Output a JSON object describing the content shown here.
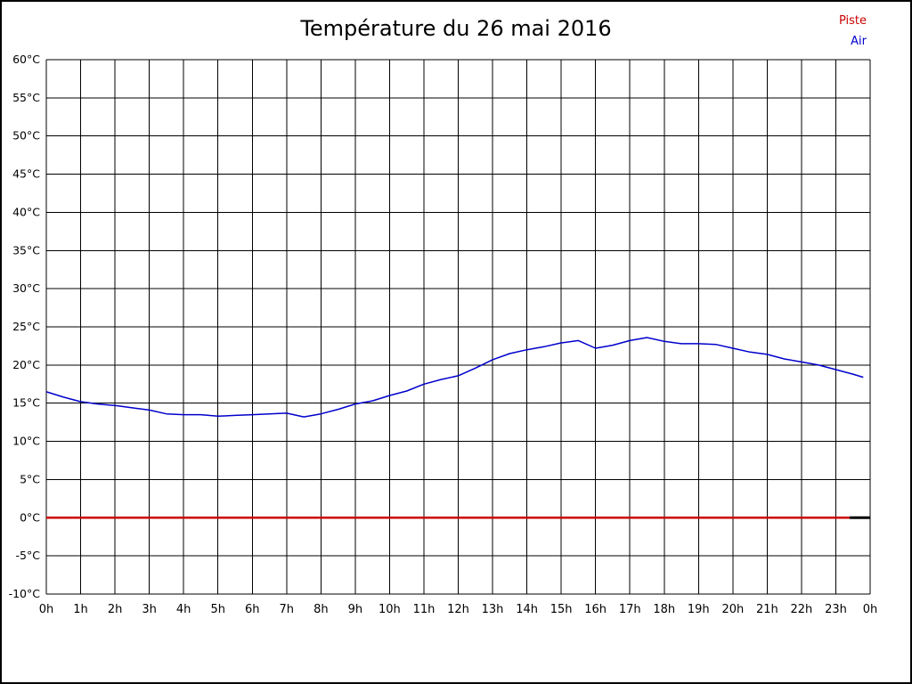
{
  "title": "Température du 26 mai 2016",
  "legend": {
    "items": [
      {
        "label": "Piste",
        "color": "#cc0000"
      },
      {
        "label": "Air",
        "color": "#0000cc"
      }
    ]
  },
  "chart_data": {
    "type": "line",
    "title": "Température du 26 mai 2016",
    "xlabel": "",
    "ylabel": "",
    "xlim": [
      0,
      24
    ],
    "ylim": [
      -10,
      60
    ],
    "ytick_step": 5,
    "grid": true,
    "grid_color": "#000000",
    "legend_position": "top-right",
    "ytick_labels": [
      "60°C",
      "55°C",
      "50°C",
      "45°C",
      "40°C",
      "35°C",
      "30°C",
      "25°C",
      "20°C",
      "15°C",
      "10°C",
      "5°C",
      "0°C",
      "-5°C",
      "-10°C"
    ],
    "xtick_labels": [
      "0h",
      "1h",
      "2h",
      "3h",
      "4h",
      "5h",
      "6h",
      "7h",
      "8h",
      "9h",
      "10h",
      "11h",
      "12h",
      "13h",
      "14h",
      "15h",
      "16h",
      "17h",
      "18h",
      "19h",
      "20h",
      "21h",
      "22h",
      "23h",
      "0h"
    ],
    "series": [
      {
        "name": "Air",
        "color": "#0000cc",
        "width": 1.5,
        "points": [
          [
            0,
            16.5
          ],
          [
            0.5,
            15.8
          ],
          [
            1,
            15.2
          ],
          [
            1.5,
            14.9
          ],
          [
            2,
            14.7
          ],
          [
            2.5,
            14.4
          ],
          [
            3,
            14.1
          ],
          [
            3.5,
            13.6
          ],
          [
            4,
            13.5
          ],
          [
            4.5,
            13.5
          ],
          [
            5,
            13.3
          ],
          [
            5.5,
            13.4
          ],
          [
            6,
            13.5
          ],
          [
            6.5,
            13.6
          ],
          [
            7,
            13.7
          ],
          [
            7.5,
            13.2
          ],
          [
            8,
            13.6
          ],
          [
            8.5,
            14.2
          ],
          [
            9,
            14.9
          ],
          [
            9.5,
            15.3
          ],
          [
            10,
            16.0
          ],
          [
            10.5,
            16.6
          ],
          [
            11,
            17.5
          ],
          [
            11.5,
            18.1
          ],
          [
            12,
            18.6
          ],
          [
            12.5,
            19.6
          ],
          [
            13,
            20.7
          ],
          [
            13.5,
            21.5
          ],
          [
            14,
            22.0
          ],
          [
            14.5,
            22.4
          ],
          [
            15,
            22.9
          ],
          [
            15.5,
            23.2
          ],
          [
            16,
            22.2
          ],
          [
            16.5,
            22.6
          ],
          [
            17,
            23.2
          ],
          [
            17.5,
            23.6
          ],
          [
            18,
            23.1
          ],
          [
            18.5,
            22.8
          ],
          [
            19,
            22.8
          ],
          [
            19.5,
            22.7
          ],
          [
            20,
            22.2
          ],
          [
            20.5,
            21.7
          ],
          [
            21,
            21.4
          ],
          [
            21.5,
            20.8
          ],
          [
            22,
            20.4
          ],
          [
            22.5,
            20.0
          ],
          [
            23,
            19.4
          ],
          [
            23.5,
            18.8
          ],
          [
            23.8,
            18.4
          ]
        ]
      },
      {
        "name": "Piste",
        "color": "#cc0000",
        "width": 2.5,
        "points": [
          [
            0,
            0
          ],
          [
            23.4,
            0
          ]
        ]
      },
      {
        "name": "Piste-end",
        "color": "#000000",
        "width": 3,
        "points": [
          [
            23.4,
            0
          ],
          [
            24,
            0
          ]
        ]
      }
    ]
  }
}
